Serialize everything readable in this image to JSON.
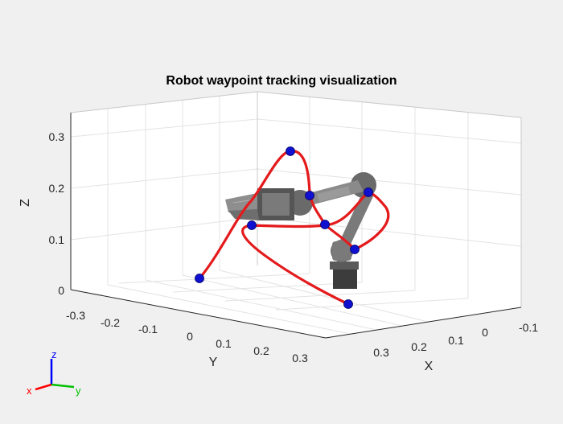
{
  "window": {
    "plot_title": "Robot waypoint tracking visualization"
  },
  "axes": {
    "x_label": "X",
    "y_label": "Y",
    "z_label": "Z",
    "x_ticks": [
      "0.3",
      "0.2",
      "0.1",
      "0",
      "-0.1"
    ],
    "y_ticks": [
      "-0.3",
      "-0.2",
      "-0.1",
      "0",
      "0.1",
      "0.2",
      "0.3"
    ],
    "z_ticks": [
      "0.3",
      "0.2",
      "0.1",
      "0"
    ]
  },
  "triad": {
    "x_label": "x",
    "y_label": "y",
    "z_label": "z",
    "x_color": "#ff0000",
    "y_color": "#00c000",
    "z_color": "#0000ff"
  },
  "trajectory": {
    "color": "#e41a1c",
    "waypoint_color": "#1010d0",
    "waypoint_count": 9
  },
  "robot": {
    "body_color": "#7a7a7a",
    "dark_color": "#3c3c3c"
  }
}
